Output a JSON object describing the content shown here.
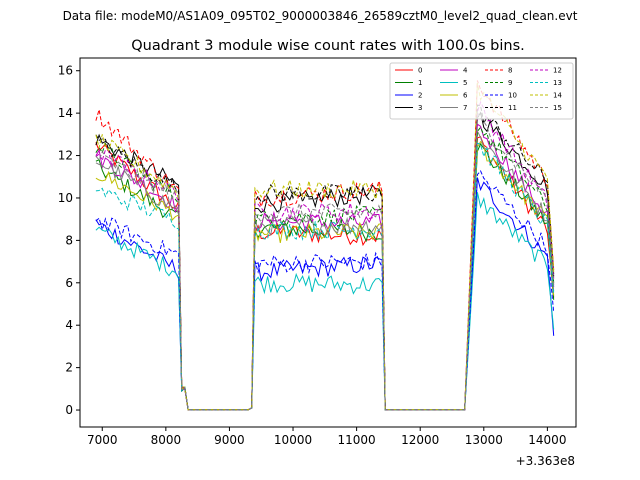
{
  "supertitle": "Data file: modeM0/AS1A09_095T02_9000003846_26589cztM0_level2_quad_clean.evt",
  "chart_data": {
    "type": "line",
    "title": "Quadrant 3 module wise count rates with 100.0s bins.",
    "xlabel": "",
    "ylabel": "",
    "x_offset_label": "+3.363e8",
    "xlim": [
      6650,
      14450
    ],
    "ylim": [
      -0.8,
      16.6
    ],
    "xticks": [
      7000,
      8000,
      9000,
      10000,
      11000,
      12000,
      13000,
      14000
    ],
    "yticks": [
      0,
      2,
      4,
      6,
      8,
      10,
      12,
      14,
      16
    ],
    "legend_position": "top-right",
    "legend_columns": 4,
    "segments": [
      {
        "x_start": 6900,
        "x_end": 8200,
        "drop_x": [
          8300,
          8400
        ]
      },
      {
        "x_start": 9300,
        "x_end": 9400,
        "flat": true
      },
      {
        "x_start": 9400,
        "x_end": 11400,
        "drop_x": [
          11500
        ]
      },
      {
        "x_start": 11500,
        "x_end": 12700,
        "flat": true
      },
      {
        "x_start": 12700,
        "x_end": 14100
      }
    ],
    "series": [
      {
        "name": "0",
        "color": "#ff0000",
        "style": "solid",
        "levels": [
          12.5,
          9.5,
          8.4,
          8.2,
          12.8,
          8.5,
          5.3
        ]
      },
      {
        "name": "1",
        "color": "#008000",
        "style": "solid",
        "levels": [
          11.5,
          9.0,
          8.6,
          8.4,
          12.5,
          8.8,
          5.2
        ]
      },
      {
        "name": "2",
        "color": "#0000ff",
        "style": "solid",
        "levels": [
          8.8,
          6.6,
          6.5,
          6.9,
          10.8,
          7.2,
          3.5
        ]
      },
      {
        "name": "3",
        "color": "#000000",
        "style": "solid",
        "levels": [
          12.8,
          10.6,
          9.7,
          10.2,
          14.0,
          10.5,
          6.4
        ]
      },
      {
        "name": "4",
        "color": "#bf00bf",
        "style": "solid",
        "levels": [
          12.0,
          9.6,
          8.9,
          8.8,
          13.4,
          9.2,
          5.8
        ]
      },
      {
        "name": "5",
        "color": "#00bfbf",
        "style": "solid",
        "levels": [
          8.5,
          6.5,
          6.0,
          5.9,
          10.0,
          6.8,
          3.8
        ]
      },
      {
        "name": "6",
        "color": "#bfbf00",
        "style": "solid",
        "levels": [
          11.2,
          9.2,
          8.3,
          8.4,
          12.6,
          8.9,
          5.4
        ]
      },
      {
        "name": "7",
        "color": "#808080",
        "style": "solid",
        "levels": [
          11.8,
          9.4,
          8.7,
          8.7,
          13.0,
          9.1,
          5.6
        ]
      },
      {
        "name": "8",
        "color": "#ff0000",
        "style": "dashed",
        "levels": [
          14.0,
          10.3,
          10.0,
          10.4,
          15.5,
          10.8,
          6.6
        ]
      },
      {
        "name": "9",
        "color": "#008000",
        "style": "dashed",
        "levels": [
          12.5,
          10.0,
          9.0,
          9.2,
          13.5,
          9.6,
          6.0
        ]
      },
      {
        "name": "10",
        "color": "#0000ff",
        "style": "dashed",
        "levels": [
          9.0,
          7.3,
          6.9,
          7.0,
          11.2,
          7.7,
          4.6
        ]
      },
      {
        "name": "11",
        "color": "#000000",
        "style": "dashed",
        "levels": [
          12.7,
          10.4,
          10.2,
          10.2,
          14.2,
          10.8,
          6.3
        ]
      },
      {
        "name": "12",
        "color": "#bf00bf",
        "style": "dashed",
        "levels": [
          12.2,
          10.2,
          9.3,
          9.4,
          14.4,
          9.8,
          6.2
        ]
      },
      {
        "name": "13",
        "color": "#00bfbf",
        "style": "dashed",
        "levels": [
          10.4,
          8.9,
          8.5,
          8.5,
          12.6,
          8.7,
          5.5
        ]
      },
      {
        "name": "14",
        "color": "#bfbf00",
        "style": "dashed",
        "levels": [
          12.8,
          10.3,
          10.4,
          10.4,
          15.2,
          10.9,
          6.5
        ]
      },
      {
        "name": "15",
        "color": "#808080",
        "style": "dashed",
        "levels": [
          12.0,
          10.0,
          9.3,
          9.3,
          13.7,
          10.0,
          5.9
        ]
      }
    ],
    "level_note": "levels = [seg1 start, seg1 end, seg3 start, seg3 end, seg5 start (~13000), seg5 ~14000, seg5 end]"
  }
}
